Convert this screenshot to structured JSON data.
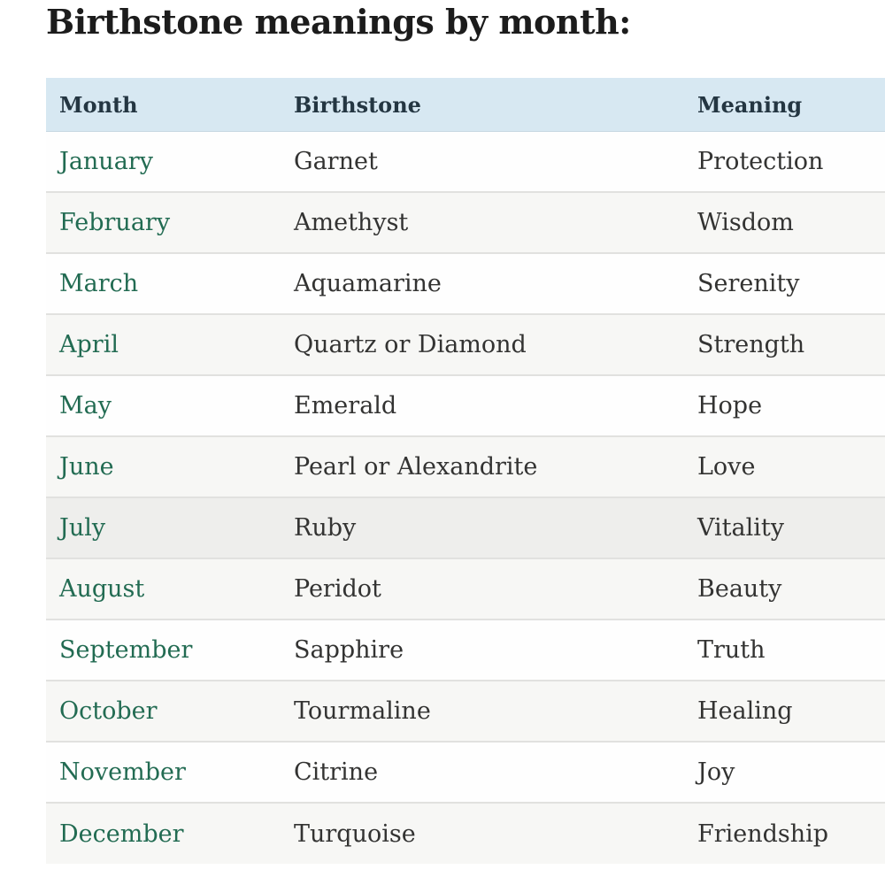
{
  "page": {
    "title": "Birthstone meanings by month:"
  },
  "colors": {
    "header_background": "#d7e8f2",
    "header_text": "#243642",
    "month_link_green": "#226b52",
    "body_text": "#333332",
    "alt_row_background": "#f7f7f5",
    "highlighted_row_background": "#eeeeec",
    "row_divider": "#e1e1df"
  },
  "table": {
    "columns": [
      "Month",
      "Birthstone",
      "Meaning"
    ],
    "rows": [
      {
        "month": "January",
        "birthstone": "Garnet",
        "meaning": "Protection",
        "highlighted": false
      },
      {
        "month": "February",
        "birthstone": "Amethyst",
        "meaning": "Wisdom",
        "highlighted": false
      },
      {
        "month": "March",
        "birthstone": "Aquamarine",
        "meaning": "Serenity",
        "highlighted": false
      },
      {
        "month": "April",
        "birthstone": "Quartz or Diamond",
        "meaning": "Strength",
        "highlighted": false
      },
      {
        "month": "May",
        "birthstone": "Emerald",
        "meaning": "Hope",
        "highlighted": false
      },
      {
        "month": "June",
        "birthstone": "Pearl or Alexandrite",
        "meaning": "Love",
        "highlighted": false
      },
      {
        "month": "July",
        "birthstone": "Ruby",
        "meaning": "Vitality",
        "highlighted": true
      },
      {
        "month": "August",
        "birthstone": "Peridot",
        "meaning": "Beauty",
        "highlighted": false
      },
      {
        "month": "September",
        "birthstone": "Sapphire",
        "meaning": "Truth",
        "highlighted": false
      },
      {
        "month": "October",
        "birthstone": "Tourmaline",
        "meaning": "Healing",
        "highlighted": false
      },
      {
        "month": "November",
        "birthstone": "Citrine",
        "meaning": "Joy",
        "highlighted": false
      },
      {
        "month": "December",
        "birthstone": "Turquoise",
        "meaning": "Friendship",
        "highlighted": false
      }
    ]
  },
  "chart_data": {
    "type": "table",
    "title": "Birthstone meanings by month:",
    "columns": [
      "Month",
      "Birthstone",
      "Meaning"
    ],
    "rows": [
      [
        "January",
        "Garnet",
        "Protection"
      ],
      [
        "February",
        "Amethyst",
        "Wisdom"
      ],
      [
        "March",
        "Aquamarine",
        "Serenity"
      ],
      [
        "April",
        "Quartz or Diamond",
        "Strength"
      ],
      [
        "May",
        "Emerald",
        "Hope"
      ],
      [
        "June",
        "Pearl or Alexandrite",
        "Love"
      ],
      [
        "July",
        "Ruby",
        "Vitality"
      ],
      [
        "August",
        "Peridot",
        "Beauty"
      ],
      [
        "September",
        "Sapphire",
        "Truth"
      ],
      [
        "October",
        "Tourmaline",
        "Healing"
      ],
      [
        "November",
        "Citrine",
        "Joy"
      ],
      [
        "December",
        "Turquoise",
        "Friendship"
      ]
    ]
  }
}
